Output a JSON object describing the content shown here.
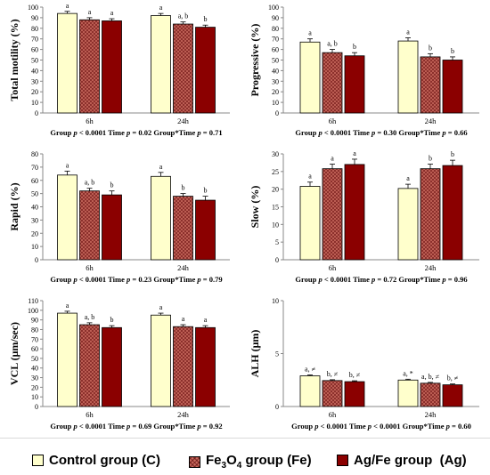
{
  "colors": {
    "control": "#ffffcc",
    "fe": "#c96a5e",
    "fe_pattern": "#6b0f0f",
    "ag": "#8b0000"
  },
  "legend": {
    "control": "Control group (C)",
    "fe_prefix": "Fe",
    "fe_sub3": "3",
    "fe_mid": "O",
    "fe_sub4": "4",
    "fe_suffix": " group (Fe)",
    "ag": "Ag/Fe group  (Ag)"
  },
  "chart_data": [
    {
      "type": "bar",
      "ylabel": "Total motility (%)",
      "ylim": [
        0,
        100
      ],
      "yticks": [
        0,
        10,
        20,
        30,
        40,
        50,
        60,
        70,
        80,
        90,
        100
      ],
      "categories": [
        "6h",
        "24h"
      ],
      "series": [
        {
          "key": "C",
          "values": [
            94,
            92
          ],
          "errors": [
            2,
            2
          ],
          "letters": [
            "a",
            "a"
          ]
        },
        {
          "key": "Fe",
          "values": [
            88,
            84
          ],
          "errors": [
            2,
            2
          ],
          "letters": [
            "a",
            "a, b"
          ]
        },
        {
          "key": "Ag",
          "values": [
            87,
            81
          ],
          "errors": [
            2,
            2
          ],
          "letters": [
            "a",
            "b"
          ]
        }
      ],
      "stats": {
        "g": "< 0.0001",
        "t": "= 0.02",
        "gt": "= 0.71"
      }
    },
    {
      "type": "bar",
      "ylabel": "Progressive (%)",
      "ylim": [
        0,
        100
      ],
      "yticks": [
        0,
        10,
        20,
        30,
        40,
        50,
        60,
        70,
        80,
        90,
        100
      ],
      "categories": [
        "6h",
        "24h"
      ],
      "series": [
        {
          "key": "C",
          "values": [
            67,
            68
          ],
          "errors": [
            3,
            3
          ],
          "letters": [
            "a",
            "a"
          ]
        },
        {
          "key": "Fe",
          "values": [
            57,
            53
          ],
          "errors": [
            3,
            3
          ],
          "letters": [
            "a, b",
            "b"
          ]
        },
        {
          "key": "Ag",
          "values": [
            54,
            50
          ],
          "errors": [
            3,
            3
          ],
          "letters": [
            "b",
            "b"
          ]
        }
      ],
      "stats": {
        "g": "< 0.0001",
        "t": "= 0.30",
        "gt": "= 0.66"
      }
    },
    {
      "type": "bar",
      "ylabel": "Rapid (%)",
      "ylim": [
        0,
        80
      ],
      "yticks": [
        0,
        10,
        20,
        30,
        40,
        50,
        60,
        70,
        80
      ],
      "categories": [
        "6h",
        "24h"
      ],
      "series": [
        {
          "key": "C",
          "values": [
            64,
            63
          ],
          "errors": [
            3,
            3
          ],
          "letters": [
            "a",
            "a"
          ]
        },
        {
          "key": "Fe",
          "values": [
            52,
            48
          ],
          "errors": [
            2,
            2
          ],
          "letters": [
            "a, b",
            "b"
          ]
        },
        {
          "key": "Ag",
          "values": [
            49,
            45
          ],
          "errors": [
            3,
            3
          ],
          "letters": [
            "b",
            "b"
          ]
        }
      ],
      "stats": {
        "g": "< 0.0001",
        "t": "= 0.23",
        "gt": "= 0.79"
      }
    },
    {
      "type": "bar",
      "ylabel": "Slow (%)",
      "ylim": [
        0,
        30
      ],
      "yticks": [
        0,
        5,
        10,
        15,
        20,
        25,
        30
      ],
      "categories": [
        "6h",
        "24h"
      ],
      "series": [
        {
          "key": "C",
          "values": [
            20.8,
            20.2
          ],
          "errors": [
            1.2,
            1.2
          ],
          "letters": [
            "a",
            "a"
          ]
        },
        {
          "key": "Fe",
          "values": [
            25.8,
            25.8
          ],
          "errors": [
            1.3,
            1.3
          ],
          "letters": [
            "a",
            "b"
          ]
        },
        {
          "key": "Ag",
          "values": [
            27.0,
            26.7
          ],
          "errors": [
            1.5,
            1.5
          ],
          "letters": [
            "a",
            "b"
          ]
        }
      ],
      "stats": {
        "g": "< 0.0001",
        "t": "= 0.72",
        "gt": "= 0.96"
      }
    },
    {
      "type": "bar",
      "ylabel": "VCL (μm/sec)",
      "ylim": [
        0,
        110
      ],
      "yticks": [
        0,
        10,
        20,
        30,
        40,
        50,
        60,
        70,
        80,
        90,
        100,
        110
      ],
      "categories": [
        "6h",
        "24h"
      ],
      "series": [
        {
          "key": "C",
          "values": [
            97,
            95
          ],
          "errors": [
            2,
            2
          ],
          "letters": [
            "a",
            "a"
          ]
        },
        {
          "key": "Fe",
          "values": [
            85,
            83
          ],
          "errors": [
            2,
            2
          ],
          "letters": [
            "a, b",
            "a"
          ]
        },
        {
          "key": "Ag",
          "values": [
            82,
            82
          ],
          "errors": [
            2,
            2
          ],
          "letters": [
            "b",
            "a"
          ]
        }
      ],
      "stats": {
        "g": "< 0.0001",
        "t": "= 0.69",
        "gt": "= 0.92"
      }
    },
    {
      "type": "bar",
      "ylabel": "ALH (μm)",
      "ylim": [
        0,
        10
      ],
      "yticks": [
        0,
        5,
        10
      ],
      "categories": [
        "6h",
        "24h"
      ],
      "series": [
        {
          "key": "C",
          "values": [
            2.9,
            2.5
          ],
          "errors": [
            0.08,
            0.08
          ],
          "letters": [
            "a, ≠",
            "a, *"
          ]
        },
        {
          "key": "Fe",
          "values": [
            2.45,
            2.2
          ],
          "errors": [
            0.08,
            0.08
          ],
          "letters": [
            "b, ≠",
            "a, b, ≠"
          ]
        },
        {
          "key": "Ag",
          "values": [
            2.35,
            2.05
          ],
          "errors": [
            0.08,
            0.08
          ],
          "letters": [
            "b, ≠",
            "b, ≠"
          ]
        }
      ],
      "stats": {
        "g": "< 0.0001",
        "t": "< 0.0001",
        "gt": "= 0.60"
      }
    }
  ],
  "stat_words": {
    "group": "Group",
    "time": "Time",
    "gt": "Group*Time",
    "p": "p"
  }
}
